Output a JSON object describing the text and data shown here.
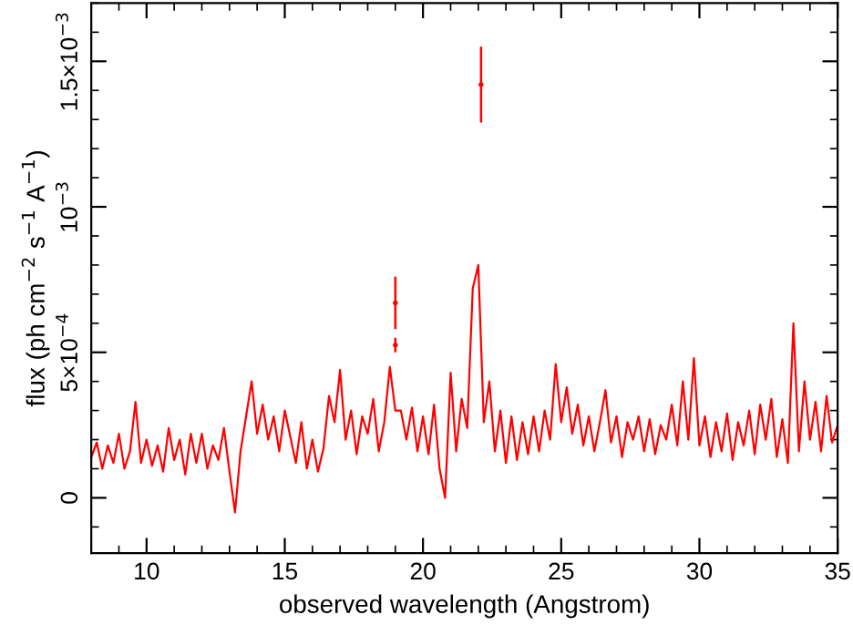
{
  "chart_data": {
    "type": "line",
    "xlabel": "observed wavelength (Angstrom)",
    "ylabel": "flux (ph cm$^{−2}$ s$^{−1}$ A$^{−1}$)",
    "xlim": [
      8,
      35
    ],
    "ylim": [
      -0.00019,
      0.0017
    ],
    "xticks": [
      10,
      15,
      20,
      25,
      30,
      35
    ],
    "yticks": [
      {
        "value": 0,
        "label": "0"
      },
      {
        "value": 0.0005,
        "label": "5×10$^{−4}$"
      },
      {
        "value": 0.001,
        "label": "10$^{−3}$"
      },
      {
        "value": 0.0015,
        "label": "1.5×10$^{−3}$"
      }
    ],
    "grid": false,
    "legend": false,
    "line_style": "solid",
    "series": [
      {
        "color": "#ff0000",
        "x": [
          8.0,
          8.2,
          8.4,
          8.6,
          8.8,
          9.0,
          9.2,
          9.4,
          9.6,
          9.8,
          10.0,
          10.2,
          10.4,
          10.6,
          10.8,
          11.0,
          11.2,
          11.4,
          11.6,
          11.8,
          12.0,
          12.2,
          12.4,
          12.6,
          12.8,
          13.0,
          13.2,
          13.4,
          13.6,
          13.8,
          14.0,
          14.2,
          14.4,
          14.6,
          14.8,
          15.0,
          15.2,
          15.4,
          15.6,
          15.8,
          16.0,
          16.2,
          16.4,
          16.6,
          16.8,
          17.0,
          17.2,
          17.4,
          17.6,
          17.8,
          18.0,
          18.2,
          18.4,
          18.6,
          18.8,
          19.0,
          19.2,
          19.4,
          19.6,
          19.8,
          20.0,
          20.2,
          20.4,
          20.6,
          20.8,
          21.0,
          21.2,
          21.4,
          21.6,
          21.8,
          22.0,
          22.2,
          22.4,
          22.6,
          22.8,
          23.0,
          23.2,
          23.4,
          23.6,
          23.8,
          24.0,
          24.2,
          24.4,
          24.6,
          24.8,
          25.0,
          25.2,
          25.4,
          25.6,
          25.8,
          26.0,
          26.2,
          26.4,
          26.6,
          26.8,
          27.0,
          27.2,
          27.4,
          27.6,
          27.8,
          28.0,
          28.2,
          28.4,
          28.6,
          28.8,
          29.0,
          29.2,
          29.4,
          29.6,
          29.8,
          30.0,
          30.2,
          30.4,
          30.6,
          30.8,
          31.0,
          31.2,
          31.4,
          31.6,
          31.8,
          32.0,
          32.2,
          32.4,
          32.6,
          32.8,
          33.0,
          33.2,
          33.4,
          33.6,
          33.8,
          34.0,
          34.2,
          34.4,
          34.6,
          34.8,
          35.0
        ],
        "values": [
          0.00014,
          0.00019,
          0.0001,
          0.00018,
          0.00012,
          0.00022,
          0.0001,
          0.00016,
          0.00033,
          0.00012,
          0.0002,
          0.00011,
          0.00018,
          9e-05,
          0.00024,
          0.00013,
          0.0002,
          8e-05,
          0.00022,
          0.00012,
          0.00022,
          0.0001,
          0.00018,
          0.00013,
          0.00024,
          9e-05,
          -5e-05,
          0.00016,
          0.00028,
          0.0004,
          0.00022,
          0.00032,
          0.0002,
          0.00028,
          0.00016,
          0.0003,
          0.00021,
          0.00012,
          0.00026,
          0.0001,
          0.0002,
          9e-05,
          0.00017,
          0.00035,
          0.00026,
          0.00044,
          0.0002,
          0.0003,
          0.00015,
          0.00028,
          0.00022,
          0.00034,
          0.00016,
          0.00026,
          0.00045,
          0.0003,
          0.0003,
          0.0002,
          0.00031,
          0.00016,
          0.00028,
          0.00015,
          0.00032,
          0.0001,
          0.0,
          0.00043,
          0.00016,
          0.00034,
          0.00024,
          0.00072,
          0.0008,
          0.00026,
          0.0004,
          0.00016,
          0.0003,
          0.00012,
          0.00028,
          0.00013,
          0.00026,
          0.00015,
          0.00028,
          0.00016,
          0.0003,
          0.0002,
          0.00046,
          0.00026,
          0.00038,
          0.00022,
          0.00032,
          0.00018,
          0.00028,
          0.00016,
          0.00026,
          0.00037,
          0.00019,
          0.00028,
          0.00014,
          0.00026,
          0.0002,
          0.00028,
          0.00016,
          0.00027,
          0.00015,
          0.00025,
          0.0002,
          0.00032,
          0.00018,
          0.0004,
          0.0002,
          0.00048,
          0.00018,
          0.00028,
          0.00014,
          0.00026,
          0.00016,
          0.00029,
          0.00013,
          0.00026,
          0.00018,
          0.0003,
          0.00015,
          0.00032,
          0.0002,
          0.00034,
          0.00014,
          0.00027,
          0.00012,
          0.0006,
          0.00016,
          0.0004,
          0.0002,
          0.00033,
          0.00016,
          0.00035,
          0.00019,
          0.00025
        ]
      },
      {
        "type": "scatter",
        "marker": "circle",
        "color": "#ff0000",
        "x": [
          19.0,
          19.0,
          22.1
        ],
        "values": [
          0.00067,
          0.000525,
          0.00142
        ],
        "errors": [
          9e-05,
          2.5e-05,
          0.00013
        ]
      }
    ]
  }
}
